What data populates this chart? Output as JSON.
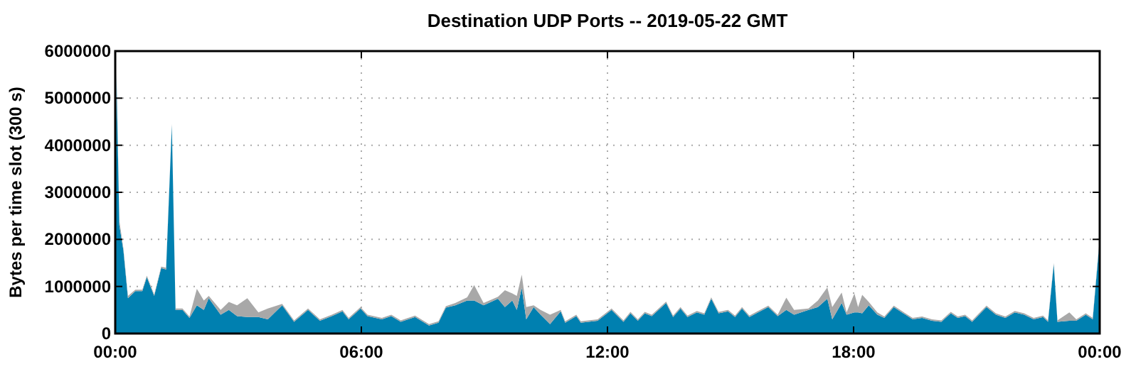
{
  "chart_data": {
    "type": "area",
    "stacked": true,
    "title": "Destination UDP Ports -- 2019-05-22 GMT",
    "ylabel": "Bytes per time slot (300 s)",
    "x": [
      0,
      0.03,
      0.1,
      0.2,
      0.31,
      0.49,
      0.66,
      0.77,
      0.95,
      1.12,
      1.24,
      1.38,
      1.47,
      1.64,
      1.81,
      1.99,
      2.16,
      2.28,
      2.57,
      2.77,
      2.97,
      3.22,
      3.49,
      3.72,
      4.07,
      4.36,
      4.7,
      4.99,
      5.28,
      5.54,
      5.69,
      5.98,
      6.15,
      6.5,
      6.73,
      6.96,
      7.31,
      7.65,
      7.88,
      8.06,
      8.29,
      8.58,
      8.75,
      8.98,
      9.33,
      9.5,
      9.68,
      9.79,
      9.91,
      10.02,
      10.2,
      10.37,
      10.6,
      10.86,
      10.97,
      11.24,
      11.35,
      11.76,
      12.1,
      12.39,
      12.56,
      12.74,
      12.91,
      13.08,
      13.43,
      13.6,
      13.78,
      13.95,
      14.18,
      14.36,
      14.53,
      14.71,
      14.94,
      15.11,
      15.28,
      15.46,
      15.63,
      15.92,
      16.15,
      16.36,
      16.55,
      16.9,
      17.13,
      17.36,
      17.48,
      17.71,
      17.83,
      18.02,
      18.11,
      18.21,
      18.37,
      18.58,
      18.75,
      18.98,
      19.21,
      19.44,
      19.67,
      19.91,
      20.14,
      20.37,
      20.54,
      20.72,
      20.89,
      21.24,
      21.47,
      21.7,
      21.93,
      22.16,
      22.39,
      22.62,
      22.74,
      22.88,
      22.97,
      23.26,
      23.43,
      23.66,
      23.83,
      23.98,
      24
    ],
    "series": [
      {
        "color": "#0080b0",
        "values": [
          700000,
          5500000,
          2300000,
          1760000,
          750000,
          900000,
          900000,
          1200000,
          800000,
          1390000,
          1360000,
          4430000,
          500000,
          500000,
          330000,
          600000,
          500000,
          750000,
          400000,
          500000,
          370000,
          350000,
          350000,
          300000,
          600000,
          250000,
          500000,
          270000,
          370000,
          470000,
          300000,
          530000,
          370000,
          300000,
          370000,
          250000,
          350000,
          170000,
          230000,
          550000,
          600000,
          700000,
          700000,
          600000,
          740000,
          560000,
          700000,
          500000,
          970000,
          300000,
          560000,
          400000,
          200000,
          470000,
          230000,
          370000,
          230000,
          270000,
          500000,
          250000,
          430000,
          270000,
          430000,
          370000,
          650000,
          350000,
          530000,
          350000,
          450000,
          400000,
          740000,
          430000,
          470000,
          350000,
          530000,
          350000,
          430000,
          560000,
          370000,
          500000,
          400000,
          500000,
          560000,
          740000,
          300000,
          650000,
          400000,
          450000,
          450000,
          430000,
          600000,
          400000,
          330000,
          560000,
          430000,
          300000,
          330000,
          270000,
          250000,
          430000,
          330000,
          370000,
          250000,
          560000,
          400000,
          330000,
          450000,
          400000,
          300000,
          350000,
          250000,
          1470000,
          250000,
          270000,
          270000,
          400000,
          300000,
          1800000,
          850000
        ]
      },
      {
        "color": "#a8a8a8",
        "values": [
          50000,
          100000,
          100000,
          40000,
          50000,
          30000,
          30000,
          30000,
          30000,
          30000,
          40000,
          30000,
          30000,
          30000,
          30000,
          350000,
          200000,
          50000,
          100000,
          170000,
          230000,
          400000,
          100000,
          230000,
          30000,
          30000,
          30000,
          30000,
          30000,
          30000,
          30000,
          30000,
          30000,
          30000,
          30000,
          30000,
          30000,
          30000,
          30000,
          30000,
          50000,
          70000,
          330000,
          50000,
          40000,
          360000,
          150000,
          300000,
          280000,
          260000,
          40000,
          100000,
          200000,
          30000,
          30000,
          30000,
          30000,
          30000,
          30000,
          30000,
          30000,
          30000,
          30000,
          30000,
          30000,
          30000,
          30000,
          30000,
          30000,
          30000,
          30000,
          30000,
          30000,
          30000,
          30000,
          30000,
          30000,
          30000,
          30000,
          260000,
          100000,
          30000,
          140000,
          240000,
          260000,
          220000,
          50000,
          400000,
          110000,
          390000,
          70000,
          50000,
          30000,
          30000,
          30000,
          30000,
          30000,
          30000,
          30000,
          30000,
          30000,
          30000,
          30000,
          30000,
          30000,
          30000,
          30000,
          30000,
          30000,
          30000,
          30000,
          30000,
          30000,
          180000,
          30000,
          30000,
          30000,
          50000,
          50000
        ]
      }
    ],
    "xlim": [
      0,
      24
    ],
    "xticks": [
      {
        "value": 0,
        "label": "00:00"
      },
      {
        "value": 6,
        "label": "06:00"
      },
      {
        "value": 12,
        "label": "12:00"
      },
      {
        "value": 18,
        "label": "18:00"
      },
      {
        "value": 24,
        "label": "00:00"
      }
    ],
    "ylim": [
      0,
      6000000
    ],
    "yticks": [
      0,
      1000000,
      2000000,
      3000000,
      4000000,
      5000000,
      6000000
    ],
    "grid": true
  }
}
